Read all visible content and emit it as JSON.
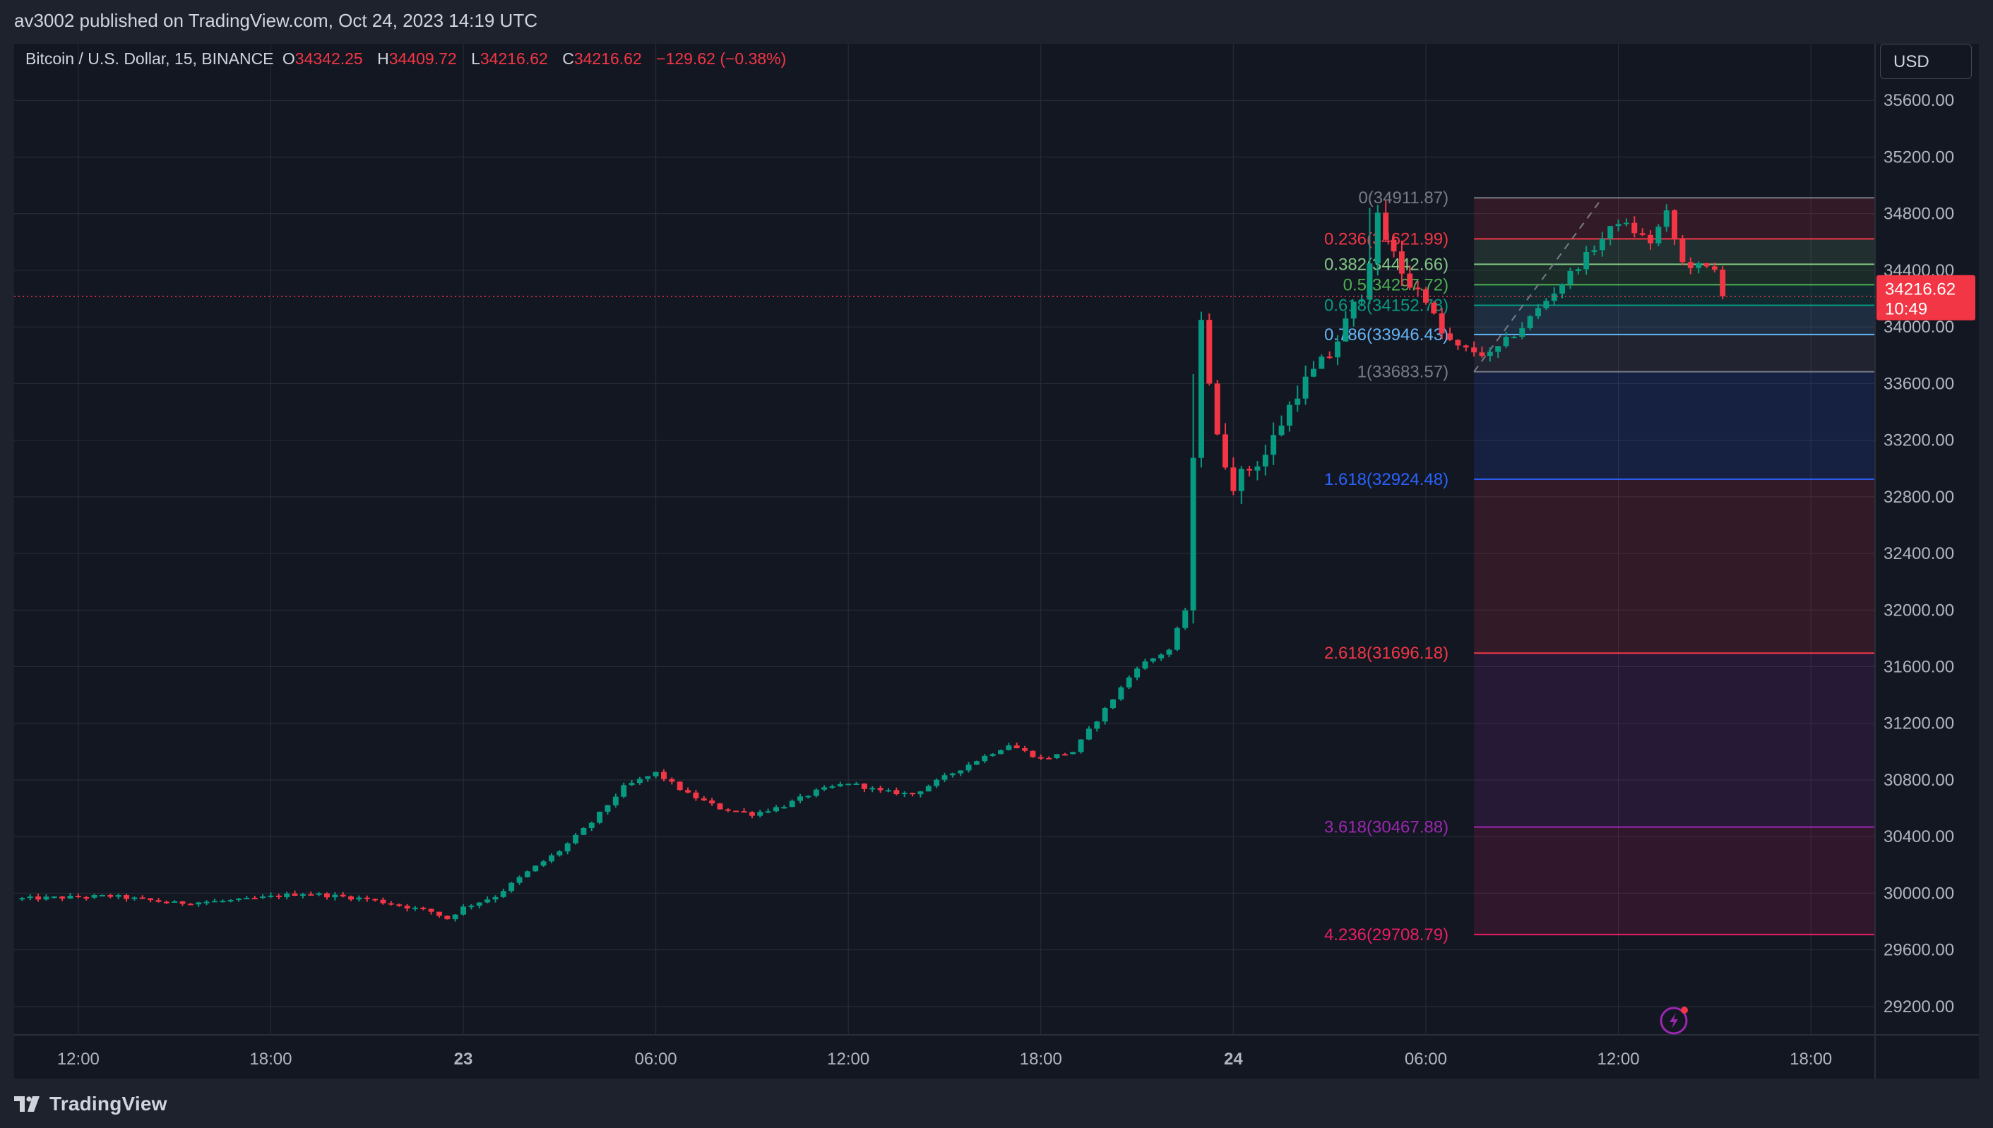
{
  "header": {
    "published": "av3002 published on TradingView.com, Oct 24, 2023 14:19 UTC"
  },
  "legend": {
    "symbol": "Bitcoin / U.S. Dollar, 15, BINANCE",
    "o_label": "O",
    "o_value": "34342.25",
    "h_label": "H",
    "h_value": "34409.72",
    "l_label": "L",
    "l_value": "34216.62",
    "c_label": "C",
    "c_value": "34216.62",
    "change": "−129.62 (−0.38%)"
  },
  "currency_button": "USD",
  "footer": {
    "brand": "TradingView",
    "logo_icon": "tradingview-logo-icon"
  },
  "colors": {
    "background": "#131722",
    "up": "#089981",
    "down": "#f23645",
    "grid": "#2a2e39",
    "axis_text": "#b2b5be"
  },
  "chart_data": {
    "type": "candlestick",
    "symbol": "BTCUSD",
    "interval": "15",
    "y_axis": {
      "ticks": [
        29200,
        29600,
        30000,
        30400,
        30800,
        31200,
        31600,
        32000,
        32400,
        32800,
        33200,
        33600,
        34000,
        34400,
        34800,
        35200,
        35600
      ],
      "tick_labels": [
        "29200.00",
        "29600.00",
        "30000.00",
        "30400.00",
        "30800.00",
        "31200.00",
        "31600.00",
        "32000.00",
        "32400.00",
        "32800.00",
        "33200.00",
        "33600.00",
        "34000.00",
        "34400.00",
        "34800.00",
        "35200.00",
        "35600.00"
      ],
      "range": [
        29000,
        36000
      ]
    },
    "x_axis": {
      "range_hours": [
        -4.0,
        42.5
      ],
      "ticks": [
        {
          "h": -3,
          "label": "12:00",
          "bold": false
        },
        {
          "h": 3,
          "label": "18:00",
          "bold": false
        },
        {
          "h": 9,
          "label": "23",
          "bold": true
        },
        {
          "h": 15,
          "label": "06:00",
          "bold": false
        },
        {
          "h": 21,
          "label": "12:00",
          "bold": false
        },
        {
          "h": 27,
          "label": "18:00",
          "bold": false
        },
        {
          "h": 33,
          "label": "24",
          "bold": true
        },
        {
          "h": 39,
          "label": "06:00",
          "bold": false
        },
        {
          "h": 45,
          "label": "12:00",
          "bold": false
        },
        {
          "h": 51,
          "label": "18:00",
          "bold": false
        }
      ]
    },
    "x_axis_hours_span": [
      -5,
      53
    ],
    "price_path": [
      [
        -5,
        29960
      ],
      [
        -2,
        29980
      ],
      [
        0,
        29930
      ],
      [
        2,
        29950
      ],
      [
        4,
        30000
      ],
      [
        6,
        29960
      ],
      [
        8,
        29870
      ],
      [
        8.5,
        29820
      ],
      [
        9,
        29900
      ],
      [
        10,
        29980
      ],
      [
        11,
        30150
      ],
      [
        12,
        30300
      ],
      [
        13,
        30500
      ],
      [
        14,
        30750
      ],
      [
        15,
        30850
      ],
      [
        16,
        30700
      ],
      [
        17,
        30600
      ],
      [
        18,
        30560
      ],
      [
        19,
        30620
      ],
      [
        20,
        30720
      ],
      [
        21,
        30780
      ],
      [
        22,
        30720
      ],
      [
        23,
        30700
      ],
      [
        24,
        30820
      ],
      [
        25,
        30940
      ],
      [
        26,
        31050
      ],
      [
        27,
        30950
      ],
      [
        28,
        31000
      ],
      [
        29,
        31300
      ],
      [
        30,
        31600
      ],
      [
        31,
        31720
      ],
      [
        31.5,
        32000
      ],
      [
        32,
        34050
      ],
      [
        32.5,
        33200
      ],
      [
        33,
        32900
      ],
      [
        34,
        33100
      ],
      [
        35,
        33550
      ],
      [
        36,
        33800
      ],
      [
        37,
        34250
      ],
      [
        37.5,
        34750
      ],
      [
        38,
        34500
      ],
      [
        38.5,
        34300
      ],
      [
        39,
        34200
      ],
      [
        39.5,
        33950
      ],
      [
        40,
        33850
      ],
      [
        41,
        33800
      ],
      [
        42,
        34000
      ],
      [
        43,
        34250
      ],
      [
        44,
        34500
      ],
      [
        45,
        34750
      ],
      [
        46,
        34600
      ],
      [
        46.5,
        34800
      ],
      [
        47,
        34450
      ],
      [
        48,
        34400
      ],
      [
        48.3,
        34216.62
      ]
    ],
    "current_price": {
      "value": 34216.62,
      "label": "34216.62",
      "countdown": "10:49"
    },
    "fib_levels": [
      {
        "level": "0",
        "price": 34911.87,
        "label": "0(34911.87)",
        "color": "#787b86"
      },
      {
        "level": "0.236",
        "price": 34621.99,
        "label": "0.236(34621.99)",
        "color": "#f23645"
      },
      {
        "level": "0.382",
        "price": 34442.66,
        "label": "0.382(34442.66)",
        "color": "#81c784"
      },
      {
        "level": "0.5",
        "price": 34297.72,
        "label": "0.5(34297.72)",
        "color": "#4caf50"
      },
      {
        "level": "0.618",
        "price": 34152.78,
        "label": "0.618(34152.78)",
        "color": "#089981"
      },
      {
        "level": "0.786",
        "price": 33946.43,
        "label": "0.786(33946.43)",
        "color": "#64b5f6"
      },
      {
        "level": "1",
        "price": 33683.57,
        "label": "1(33683.57)",
        "color": "#787b86"
      },
      {
        "level": "1.618",
        "price": 32924.48,
        "label": "1.618(32924.48)",
        "color": "#2962ff"
      },
      {
        "level": "2.618",
        "price": 31696.18,
        "label": "2.618(31696.18)",
        "color": "#f23645"
      },
      {
        "level": "3.618",
        "price": 30467.88,
        "label": "3.618(30467.88)",
        "color": "#9c27b0"
      },
      {
        "level": "4.236",
        "price": 29708.79,
        "label": "4.236(29708.79)",
        "color": "#e91e63"
      }
    ],
    "fib_start_hour": 40.5,
    "fib_trend_points": [
      [
        40.5,
        33683.57
      ],
      [
        44.5,
        34911.87
      ]
    ],
    "grid": true
  }
}
